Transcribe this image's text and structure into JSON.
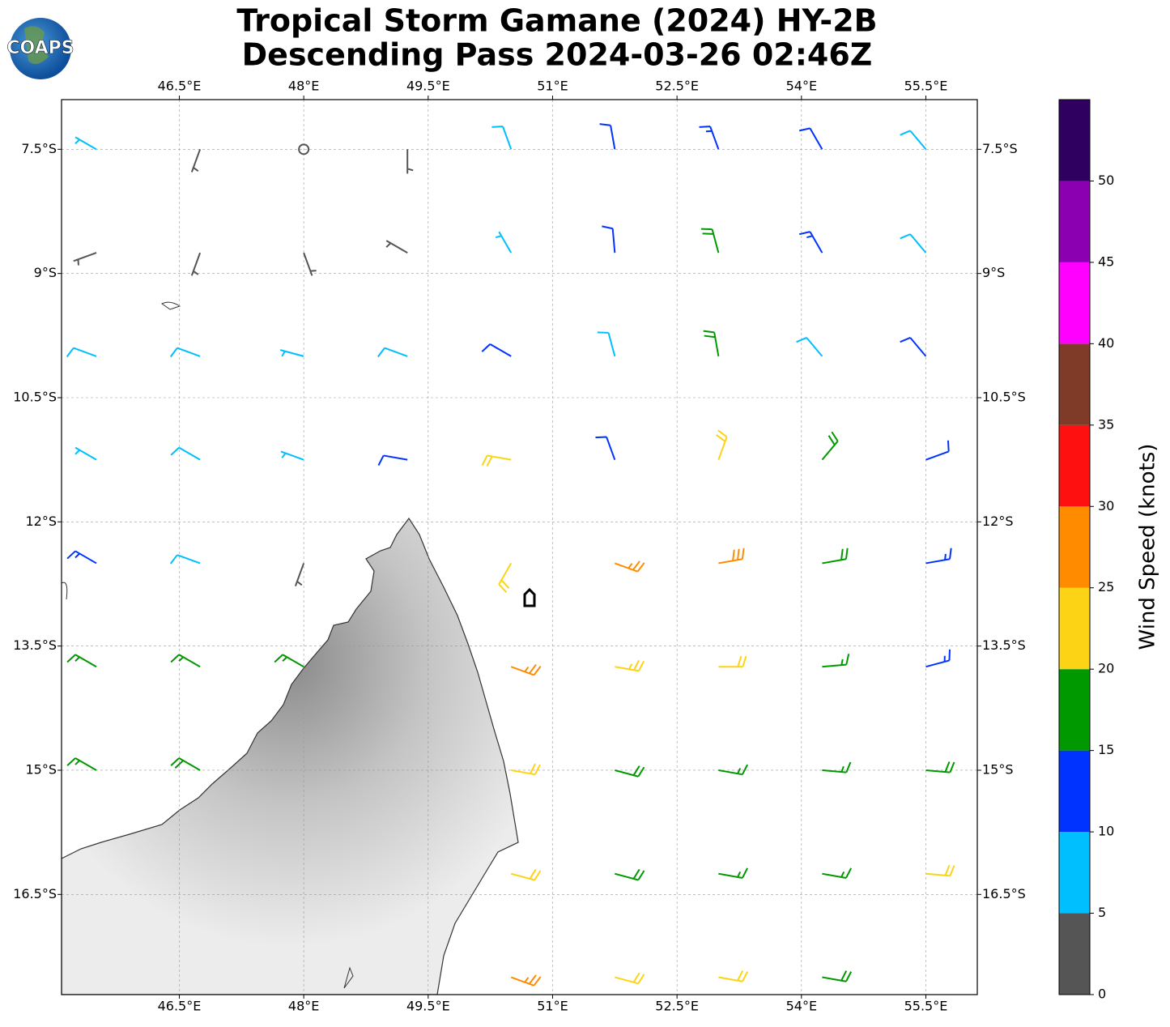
{
  "chart_data": {
    "type": "barbs",
    "title": [
      "Tropical Storm Gamane (2024) HY-2B",
      "Descending Pass 2024-03-26 02:46Z"
    ],
    "logo": "COAPS",
    "xlim": [
      45.08,
      56.12
    ],
    "ylim": [
      -17.71,
      -6.9
    ],
    "xticks": [
      {
        "value": 46.5,
        "label": "46.5°E"
      },
      {
        "value": 48,
        "label": "48°E"
      },
      {
        "value": 49.5,
        "label": "49.5°E"
      },
      {
        "value": 51,
        "label": "51°E"
      },
      {
        "value": 52.5,
        "label": "52.5°E"
      },
      {
        "value": 54,
        "label": "54°E"
      },
      {
        "value": 55.5,
        "label": "55.5°E"
      }
    ],
    "yticks": [
      {
        "value": -7.5,
        "label": "7.5°S"
      },
      {
        "value": -9,
        "label": "9°S"
      },
      {
        "value": -10.5,
        "label": "10.5°S"
      },
      {
        "value": -12,
        "label": "12°S"
      },
      {
        "value": -13.5,
        "label": "13.5°S"
      },
      {
        "value": -15,
        "label": "15°S"
      },
      {
        "value": -16.5,
        "label": "16.5°S"
      }
    ],
    "grid": true,
    "barbs": {
      "lon": [
        45.5,
        46.75,
        48,
        49.25,
        50.5,
        51.75,
        53,
        54.25,
        55.5,
        45.5,
        46.75,
        48,
        49.25,
        50.5,
        51.75,
        53,
        54.25,
        55.5,
        45.5,
        46.75,
        48,
        49.25,
        50.5,
        51.75,
        53,
        54.25,
        55.5,
        45.5,
        46.75,
        48,
        49.25,
        50.5,
        51.75,
        53,
        54.25,
        55.5,
        45.5,
        46.75,
        48,
        50.5,
        51.75,
        53,
        54.25,
        55.5,
        45.5,
        46.75,
        48,
        50.5,
        51.75,
        53,
        54.25,
        55.5,
        45.5,
        46.75,
        50.5,
        51.75,
        53,
        54.25,
        55.5,
        50.5,
        51.75,
        53,
        54.25,
        55.5,
        50.5,
        51.75,
        53,
        54.25
      ],
      "lat": [
        -7.5,
        -7.5,
        -7.5,
        -7.5,
        -7.5,
        -7.5,
        -7.5,
        -7.5,
        -7.5,
        -8.75,
        -8.75,
        -8.75,
        -8.75,
        -8.75,
        -8.75,
        -8.75,
        -8.75,
        -8.75,
        -10,
        -10,
        -10,
        -10,
        -10,
        -10,
        -10,
        -10,
        -10,
        -11.25,
        -11.25,
        -11.25,
        -11.25,
        -11.25,
        -11.25,
        -11.25,
        -11.25,
        -11.25,
        -12.5,
        -12.5,
        -12.5,
        -12.5,
        -12.5,
        -12.5,
        -12.5,
        -12.5,
        -13.75,
        -13.75,
        -13.75,
        -13.75,
        -13.75,
        -13.75,
        -13.75,
        -13.75,
        -15,
        -15,
        -15,
        -15,
        -15,
        -15,
        -15,
        -16.25,
        -16.25,
        -16.25,
        -16.25,
        -16.25,
        -17.5,
        -17.5,
        -17.5,
        -17.5
      ],
      "speed": [
        7,
        3,
        2,
        3,
        8,
        12,
        13,
        12,
        8,
        4,
        3,
        4,
        4,
        7,
        12,
        18,
        13,
        9,
        8,
        8,
        7,
        8,
        12,
        9,
        19,
        8,
        12,
        7,
        8,
        7,
        11,
        22,
        12,
        22,
        18,
        12,
        13,
        8,
        4,
        22,
        27,
        29,
        18,
        13,
        17,
        17,
        17,
        27,
        24,
        22,
        17,
        13,
        17,
        18,
        22,
        19,
        17,
        17,
        18,
        22,
        18,
        17,
        17,
        22,
        27,
        22,
        22,
        18
      ],
      "direction": [
        300,
        200,
        0,
        180,
        340,
        350,
        340,
        330,
        320,
        250,
        200,
        160,
        300,
        330,
        355,
        345,
        330,
        320,
        290,
        290,
        285,
        290,
        300,
        345,
        350,
        320,
        320,
        300,
        300,
        290,
        280,
        280,
        340,
        20,
        40,
        70,
        300,
        290,
        200,
        210,
        110,
        80,
        80,
        80,
        300,
        300,
        300,
        110,
        100,
        90,
        85,
        75,
        300,
        300,
        100,
        105,
        100,
        95,
        95,
        105,
        105,
        100,
        100,
        95,
        110,
        105,
        100,
        100
      ]
    },
    "colorbar": {
      "label": "Wind Speed (knots)",
      "bounds": [
        0,
        5,
        10,
        15,
        20,
        25,
        30,
        35,
        40,
        45,
        50,
        55
      ],
      "colors": [
        "#555555",
        "#00bfff",
        "#0033ff",
        "#009900",
        "#fdd415",
        "#ff8c00",
        "#ff1010",
        "#7f3a28",
        "#ff00ff",
        "#8b00b0",
        "#300060"
      ],
      "ticks": [
        0,
        5,
        10,
        15,
        20,
        25,
        30,
        35,
        40,
        45,
        50
      ]
    }
  }
}
